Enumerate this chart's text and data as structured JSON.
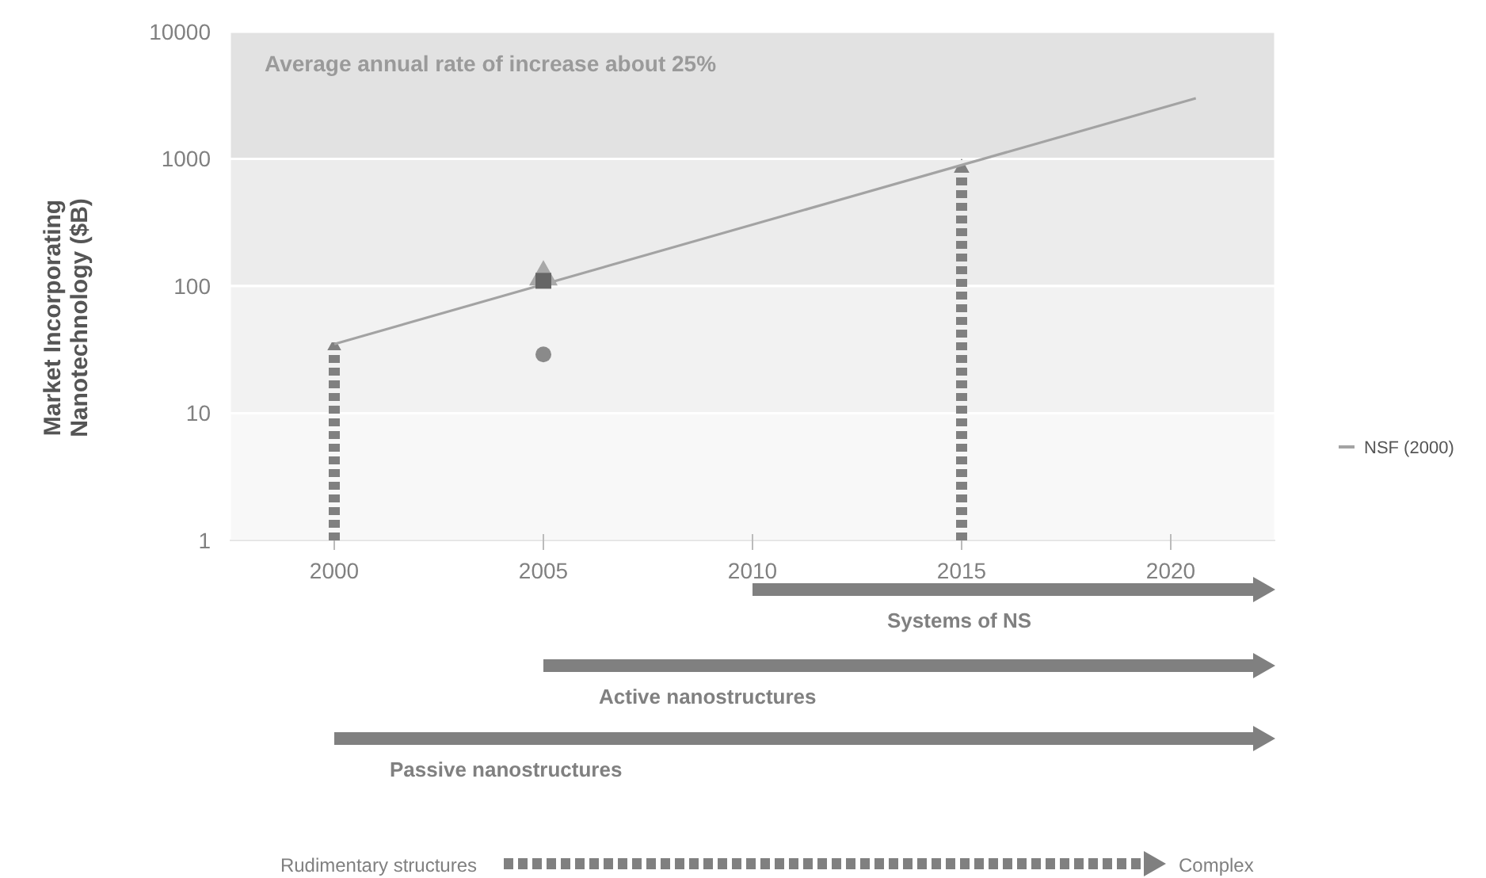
{
  "chart_data": {
    "type": "line",
    "ylabel": "Market Incorporating Nanotechnology ($B)",
    "log": "y",
    "xlim": [
      1997.5,
      2022.5
    ],
    "xticks": [
      2000,
      2005,
      2010,
      2015,
      2020
    ],
    "ylim": [
      1,
      10000
    ],
    "yticks": [
      1,
      10,
      100,
      1000,
      10000
    ],
    "legend": "right",
    "series": [
      {
        "name": "NSF (2000)",
        "color": "#a3a3a3",
        "x": [
          2000,
          2020.6
        ],
        "values": [
          35,
          3000
        ]
      },
      {
        "type": "scatter",
        "color": "#a8a8a8",
        "x": [
          2005
        ],
        "values": [
          120
        ],
        "marker": "triangle"
      },
      {
        "type": "scatter",
        "color": "#666666",
        "x": [
          2005
        ],
        "values": [
          110
        ],
        "marker": "square"
      },
      {
        "type": "scatter",
        "color": "#8a8a8a",
        "x": [
          2005
        ],
        "values": [
          29
        ],
        "marker": "circle"
      }
    ],
    "bands": [
      {
        "axis": "y",
        "from": 1000,
        "to": 10000,
        "color": "#e2e2e2"
      },
      {
        "axis": "y",
        "from": 100,
        "to": 1000,
        "color": "#ececec"
      },
      {
        "axis": "y",
        "from": 10,
        "to": 100,
        "color": "#f2f2f2"
      },
      {
        "axis": "y",
        "from": 1,
        "to": 10,
        "color": "#f8f8f8"
      }
    ],
    "annotations": [
      "Average annual rate of increase about 25%",
      "Systems of NS",
      "Active nanostructures",
      "Passive nanostructures",
      "Rudimentary structures",
      "Complex"
    ]
  }
}
